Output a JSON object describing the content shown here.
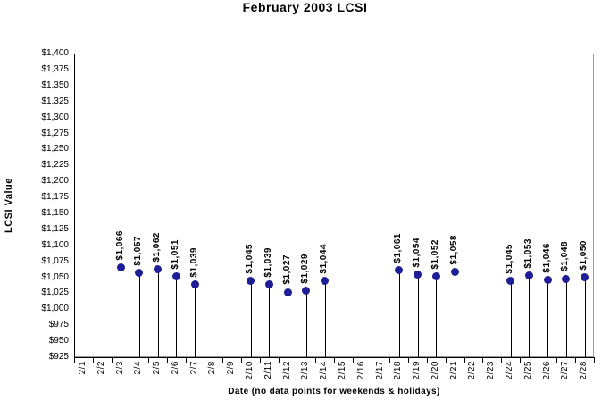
{
  "chart_data": {
    "type": "line",
    "style": "markers-with-drop-lines-no-connecting-line",
    "title": "February 2003 LCSI",
    "xlabel": "Date (no data points for weekends & holidays)",
    "ylabel": "LCSI Value",
    "categories": [
      "2/1",
      "2/2",
      "2/3",
      "2/4",
      "2/5",
      "2/6",
      "2/7",
      "2/8",
      "2/9",
      "2/10",
      "2/11",
      "2/12",
      "2/13",
      "2/14",
      "2/15",
      "2/16",
      "2/17",
      "2/18",
      "2/19",
      "2/20",
      "2/21",
      "2/22",
      "2/23",
      "2/24",
      "2/25",
      "2/26",
      "2/27",
      "2/28"
    ],
    "values": [
      null,
      null,
      1066,
      1057,
      1062,
      1051,
      1039,
      null,
      null,
      1045,
      1039,
      1027,
      1029,
      1044,
      null,
      null,
      null,
      1061,
      1054,
      1052,
      1058,
      null,
      null,
      1045,
      1053,
      1046,
      1048,
      1050
    ],
    "data_labels": [
      "$1,066",
      "$1,057",
      "$1,062",
      "$1,051",
      "$1,039",
      "$1,045",
      "$1,039",
      "$1,027",
      "$1,029",
      "$1,044",
      "$1,061",
      "$1,054",
      "$1,052",
      "$1,058",
      "$1,045",
      "$1,053",
      "$1,046",
      "$1,048",
      "$1,050"
    ],
    "ylim": [
      925,
      1400
    ],
    "ytick_step": 25,
    "ytick_labels": [
      "$1,400",
      "$1,375",
      "$1,350",
      "$1,325",
      "$1,300",
      "$1,275",
      "$1,250",
      "$1,225",
      "$1,200",
      "$1,175",
      "$1,150",
      "$1,125",
      "$1,100",
      "$1,075",
      "$1,050",
      "$1,025",
      "$1,000",
      "$975",
      "$950",
      "$925"
    ],
    "legend": "none",
    "grid": "off",
    "marker_color": "#1E1E96",
    "axis_color": "#000000",
    "plot_border_color": "#999999",
    "background": "#FFFFFF"
  }
}
